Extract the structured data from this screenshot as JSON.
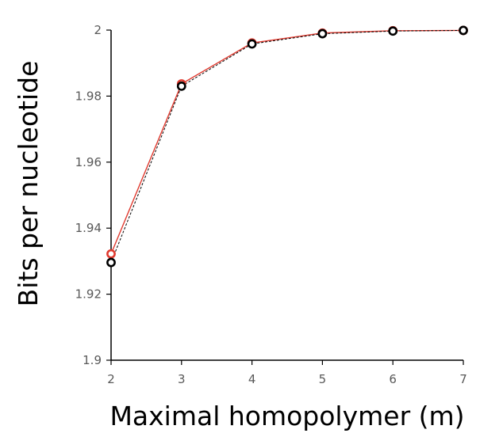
{
  "chart_data": {
    "type": "line",
    "xlabel": "Maximal homopolymer (m)",
    "ylabel": "Bits per nucleotide",
    "x": [
      2,
      3,
      4,
      5,
      6,
      7
    ],
    "xlim": [
      2,
      7
    ],
    "ylim": [
      1.9,
      2
    ],
    "yticks": [
      "1.9",
      "1.92",
      "1.94",
      "1.96",
      "1.98",
      "2"
    ],
    "xticks": [
      "2",
      "3",
      "4",
      "5",
      "6",
      "7"
    ],
    "grid": false,
    "series": [
      {
        "values": [
          1.9322,
          1.9837,
          1.9961,
          1.9991,
          1.9998,
          1.9999
        ],
        "color": "#e03a2f",
        "style": "solid"
      },
      {
        "values": [
          1.9296,
          1.983,
          1.9958,
          1.9989,
          1.9997,
          1.9999
        ],
        "color": "#000000",
        "style": "dashed"
      }
    ]
  }
}
